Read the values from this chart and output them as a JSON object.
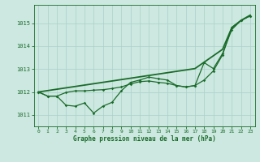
{
  "title": "Graphe pression niveau de la mer (hPa)",
  "background_color": "#cce8e0",
  "grid_color": "#aad0c8",
  "line_color": "#1a6b2a",
  "x_ticks": [
    0,
    1,
    2,
    3,
    4,
    5,
    6,
    7,
    8,
    9,
    10,
    11,
    12,
    13,
    14,
    15,
    16,
    17,
    18,
    19,
    20,
    21,
    22,
    23
  ],
  "ylim": [
    1010.5,
    1015.8
  ],
  "yticks": [
    1011,
    1012,
    1013,
    1014,
    1015
  ],
  "series1": [
    1012.0,
    1011.82,
    1011.82,
    1011.42,
    1011.38,
    1011.52,
    1011.08,
    1011.38,
    1011.55,
    1012.05,
    1012.42,
    1012.52,
    1012.65,
    1012.58,
    1012.52,
    1012.28,
    1012.22,
    1012.28,
    1013.28,
    1013.02,
    1013.68,
    1014.72,
    1015.12,
    1015.32
  ],
  "series2": [
    1012.0,
    1011.82,
    1011.82,
    1011.98,
    1012.05,
    1012.05,
    1012.08,
    1012.1,
    1012.15,
    1012.22,
    1012.35,
    1012.45,
    1012.48,
    1012.42,
    1012.38,
    1012.28,
    1012.22,
    1012.28,
    1012.52,
    1012.92,
    1013.62,
    1014.82,
    1015.12,
    1015.32
  ],
  "series3": [
    1012.0,
    1012.06,
    1012.12,
    1012.18,
    1012.24,
    1012.3,
    1012.36,
    1012.42,
    1012.48,
    1012.54,
    1012.6,
    1012.66,
    1012.72,
    1012.78,
    1012.84,
    1012.9,
    1012.96,
    1013.02,
    1013.3,
    1013.58,
    1013.86,
    1014.8,
    1015.12,
    1015.35
  ]
}
